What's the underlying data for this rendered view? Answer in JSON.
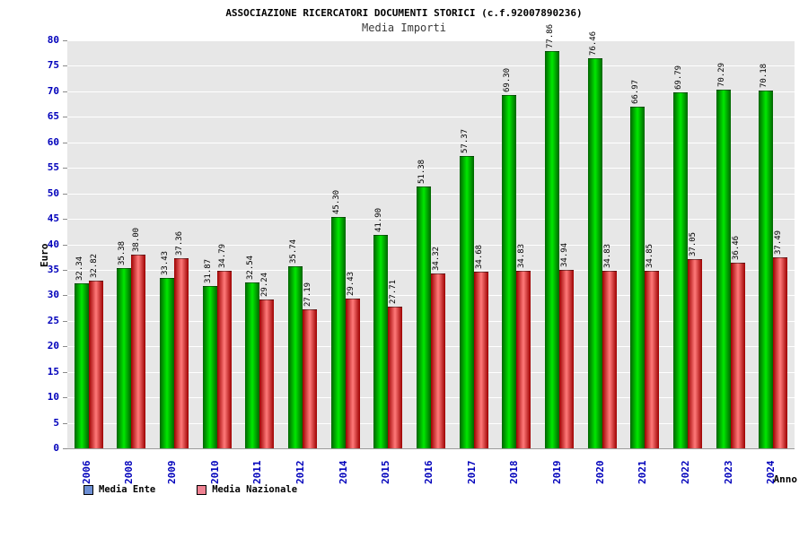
{
  "chart_data": {
    "type": "bar",
    "title": "ASSOCIAZIONE RICERCATORI DOCUMENTI STORICI (c.f.92007890236)",
    "subtitle": "Media Importi",
    "xlabel": "Anno",
    "ylabel": "Euro",
    "ylim": [
      0,
      80
    ],
    "ytick_step": 5,
    "grid": true,
    "legend_position": "bottom-left",
    "plot_bg_color": "#e7e7e7",
    "grid_color": "#ffffff",
    "axis_text_color": "#0000bb",
    "categories": [
      "2006",
      "2008",
      "2009",
      "2010",
      "2011",
      "2012",
      "2014",
      "2015",
      "2016",
      "2017",
      "2018",
      "2019",
      "2020",
      "2021",
      "2022",
      "2023",
      "2024"
    ],
    "series": [
      {
        "name": "Media Ente",
        "legend_color": "#6d8fd4",
        "bar_color_edge": "#006400",
        "bar_color_mid": "#00e800",
        "values": [
          32.34,
          35.38,
          33.43,
          31.87,
          32.54,
          35.74,
          45.3,
          41.9,
          51.38,
          57.37,
          69.3,
          77.86,
          76.46,
          66.97,
          69.79,
          70.29,
          70.18
        ]
      },
      {
        "name": "Media Nazionale",
        "legend_color": "#ef8292",
        "bar_color_edge": "#9e0000",
        "bar_color_mid": "#ff7a7a",
        "values": [
          32.82,
          38.0,
          37.36,
          34.79,
          29.24,
          27.19,
          29.43,
          27.71,
          34.32,
          34.68,
          34.83,
          34.94,
          34.83,
          34.85,
          37.05,
          36.46,
          37.49
        ]
      }
    ]
  }
}
